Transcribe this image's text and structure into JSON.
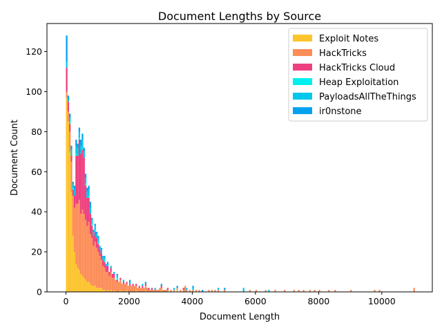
{
  "chart_data": {
    "type": "bar",
    "stacked": true,
    "title": "Document Lengths by Source",
    "xlabel": "Document Length",
    "ylabel": "Document Count",
    "xlim": [
      -600,
      11600
    ],
    "ylim": [
      0,
      134
    ],
    "xticks": [
      0,
      2000,
      4000,
      6000,
      8000,
      10000
    ],
    "yticks": [
      0,
      20,
      40,
      60,
      80,
      100,
      120
    ],
    "legend_position": "top-right",
    "bin_width": 50,
    "series": [
      {
        "name": "Exploit Notes",
        "color": "#fcc42d",
        "points": [
          [
            0,
            97
          ],
          [
            50,
            85
          ],
          [
            100,
            70
          ],
          [
            150,
            50
          ],
          [
            200,
            28
          ],
          [
            250,
            20
          ],
          [
            300,
            14
          ],
          [
            350,
            12
          ],
          [
            400,
            11
          ],
          [
            450,
            9
          ],
          [
            500,
            8
          ],
          [
            550,
            7
          ],
          [
            600,
            6
          ],
          [
            650,
            5
          ],
          [
            700,
            5
          ],
          [
            750,
            4
          ],
          [
            800,
            3
          ],
          [
            850,
            3
          ],
          [
            900,
            3
          ],
          [
            950,
            2
          ],
          [
            1000,
            2
          ],
          [
            1050,
            2
          ],
          [
            1100,
            2
          ],
          [
            1150,
            1
          ],
          [
            1200,
            1
          ],
          [
            1300,
            1
          ],
          [
            1400,
            1
          ],
          [
            1500,
            1
          ],
          [
            1700,
            1
          ],
          [
            1900,
            1
          ],
          [
            2200,
            1
          ],
          [
            2500,
            1
          ],
          [
            3000,
            1
          ],
          [
            3500,
            1
          ]
        ]
      },
      {
        "name": "HackTricks",
        "color": "#fc8d59",
        "points": [
          [
            0,
            3
          ],
          [
            50,
            5
          ],
          [
            100,
            10
          ],
          [
            150,
            15
          ],
          [
            200,
            20
          ],
          [
            250,
            22
          ],
          [
            300,
            30
          ],
          [
            350,
            32
          ],
          [
            400,
            35
          ],
          [
            450,
            30
          ],
          [
            500,
            33
          ],
          [
            550,
            32
          ],
          [
            600,
            30
          ],
          [
            650,
            28
          ],
          [
            700,
            30
          ],
          [
            750,
            25
          ],
          [
            800,
            24
          ],
          [
            850,
            20
          ],
          [
            900,
            22
          ],
          [
            950,
            20
          ],
          [
            1000,
            18
          ],
          [
            1050,
            16
          ],
          [
            1100,
            14
          ],
          [
            1150,
            12
          ],
          [
            1200,
            11
          ],
          [
            1250,
            10
          ],
          [
            1300,
            9
          ],
          [
            1350,
            8
          ],
          [
            1400,
            9
          ],
          [
            1450,
            7
          ],
          [
            1500,
            6
          ],
          [
            1550,
            6
          ],
          [
            1600,
            5
          ],
          [
            1650,
            5
          ],
          [
            1700,
            5
          ],
          [
            1750,
            4
          ],
          [
            1800,
            4
          ],
          [
            1850,
            4
          ],
          [
            1900,
            3
          ],
          [
            1950,
            3
          ],
          [
            2000,
            3
          ],
          [
            2050,
            3
          ],
          [
            2100,
            3
          ],
          [
            2150,
            3
          ],
          [
            2200,
            2
          ],
          [
            2250,
            2
          ],
          [
            2300,
            2
          ],
          [
            2350,
            2
          ],
          [
            2400,
            2
          ],
          [
            2450,
            2
          ],
          [
            2500,
            2
          ],
          [
            2550,
            2
          ],
          [
            2600,
            1
          ],
          [
            2650,
            1
          ],
          [
            2700,
            1
          ],
          [
            2750,
            1
          ],
          [
            2800,
            1
          ],
          [
            2850,
            1
          ],
          [
            2900,
            1
          ],
          [
            2950,
            2
          ],
          [
            3000,
            1
          ],
          [
            3050,
            1
          ],
          [
            3100,
            1
          ],
          [
            3150,
            1
          ],
          [
            3200,
            1
          ],
          [
            3300,
            1
          ],
          [
            3400,
            1
          ],
          [
            3500,
            1
          ],
          [
            3600,
            1
          ],
          [
            3700,
            1
          ],
          [
            3750,
            3
          ],
          [
            3800,
            1
          ],
          [
            3900,
            1
          ],
          [
            4000,
            1
          ],
          [
            4100,
            1
          ],
          [
            4200,
            1
          ],
          [
            4500,
            1
          ],
          [
            4600,
            1
          ],
          [
            4700,
            1
          ],
          [
            4800,
            1
          ],
          [
            5000,
            1
          ],
          [
            5800,
            1
          ],
          [
            6000,
            1
          ],
          [
            6300,
            1
          ],
          [
            6600,
            1
          ],
          [
            6900,
            1
          ],
          [
            7200,
            1
          ],
          [
            7350,
            1
          ],
          [
            7500,
            1
          ],
          [
            7700,
            1
          ],
          [
            7850,
            1
          ],
          [
            8000,
            1
          ],
          [
            8300,
            1
          ],
          [
            8500,
            1
          ],
          [
            9000,
            1
          ],
          [
            9750,
            1
          ],
          [
            9900,
            1
          ],
          [
            11000,
            2
          ]
        ]
      },
      {
        "name": "HackTricks Cloud",
        "color": "#ee3f80",
        "points": [
          [
            0,
            12
          ],
          [
            50,
            5
          ],
          [
            100,
            4
          ],
          [
            150,
            3
          ],
          [
            200,
            3
          ],
          [
            250,
            6
          ],
          [
            300,
            24
          ],
          [
            350,
            24
          ],
          [
            400,
            30
          ],
          [
            450,
            30
          ],
          [
            500,
            30
          ],
          [
            550,
            28
          ],
          [
            600,
            17
          ],
          [
            650,
            14
          ],
          [
            700,
            12
          ],
          [
            750,
            10
          ],
          [
            800,
            6
          ],
          [
            850,
            5
          ],
          [
            900,
            5
          ],
          [
            950,
            5
          ],
          [
            1000,
            4
          ],
          [
            1050,
            3
          ],
          [
            1100,
            3
          ],
          [
            1150,
            3
          ],
          [
            1200,
            3
          ],
          [
            1250,
            3
          ],
          [
            1300,
            3
          ],
          [
            1350,
            2
          ],
          [
            1400,
            2
          ],
          [
            1450,
            2
          ],
          [
            1500,
            2
          ],
          [
            1600,
            1
          ],
          [
            1700,
            1
          ],
          [
            1800,
            1
          ],
          [
            1900,
            1
          ],
          [
            2000,
            1
          ],
          [
            2100,
            1
          ],
          [
            2200,
            1
          ],
          [
            2300,
            1
          ],
          [
            2400,
            1
          ],
          [
            2500,
            1
          ],
          [
            2600,
            1
          ],
          [
            2700,
            1
          ],
          [
            3000,
            1
          ],
          [
            3200,
            1
          ],
          [
            3700,
            1
          ]
        ]
      },
      {
        "name": "Heap Exploitation",
        "color": "#00f0f0",
        "points": [
          [
            100,
            1
          ],
          [
            200,
            1
          ],
          [
            300,
            1
          ],
          [
            400,
            1
          ],
          [
            500,
            1
          ],
          [
            600,
            1
          ],
          [
            700,
            1
          ],
          [
            800,
            1
          ],
          [
            900,
            1
          ],
          [
            1000,
            1
          ],
          [
            1200,
            1
          ],
          [
            1600,
            1
          ]
        ]
      },
      {
        "name": "PayloadsAllTheThings",
        "color": "#00c8ec",
        "points": [
          [
            0,
            3
          ],
          [
            50,
            1
          ],
          [
            100,
            2
          ],
          [
            150,
            3
          ],
          [
            200,
            2
          ],
          [
            250,
            3
          ],
          [
            300,
            4
          ],
          [
            350,
            4
          ],
          [
            400,
            3
          ],
          [
            450,
            4
          ],
          [
            500,
            4
          ],
          [
            550,
            3
          ],
          [
            600,
            3
          ],
          [
            650,
            3
          ],
          [
            700,
            3
          ],
          [
            750,
            3
          ],
          [
            800,
            2
          ],
          [
            850,
            2
          ],
          [
            900,
            2
          ],
          [
            950,
            2
          ],
          [
            1000,
            2
          ],
          [
            1050,
            2
          ],
          [
            1100,
            2
          ],
          [
            1150,
            2
          ],
          [
            1200,
            1
          ],
          [
            1250,
            1
          ],
          [
            1300,
            1
          ],
          [
            1400,
            1
          ],
          [
            1500,
            1
          ],
          [
            1600,
            1
          ],
          [
            1800,
            1
          ],
          [
            2000,
            1
          ],
          [
            2400,
            1
          ],
          [
            2800,
            1
          ],
          [
            3400,
            1
          ],
          [
            3800,
            1
          ],
          [
            4000,
            1
          ],
          [
            4800,
            1
          ],
          [
            5600,
            2
          ],
          [
            6400,
            1
          ]
        ]
      },
      {
        "name": "ir0nstone",
        "color": "#00a2f0",
        "points": [
          [
            0,
            13
          ],
          [
            50,
            2
          ],
          [
            100,
            2
          ],
          [
            150,
            2
          ],
          [
            200,
            1
          ],
          [
            250,
            2
          ],
          [
            300,
            3
          ],
          [
            350,
            2
          ],
          [
            400,
            2
          ],
          [
            450,
            3
          ],
          [
            500,
            3
          ],
          [
            550,
            2
          ],
          [
            600,
            2
          ],
          [
            650,
            2
          ],
          [
            700,
            2
          ],
          [
            750,
            3
          ],
          [
            800,
            1
          ],
          [
            850,
            1
          ],
          [
            900,
            1
          ],
          [
            950,
            1
          ],
          [
            1000,
            1
          ],
          [
            1100,
            1
          ],
          [
            1200,
            1
          ],
          [
            1300,
            1
          ],
          [
            1600,
            1
          ],
          [
            2000,
            1
          ],
          [
            2500,
            1
          ],
          [
            3000,
            1
          ],
          [
            3500,
            1
          ],
          [
            4000,
            1
          ],
          [
            4300,
            1
          ],
          [
            5000,
            1
          ]
        ]
      }
    ]
  }
}
